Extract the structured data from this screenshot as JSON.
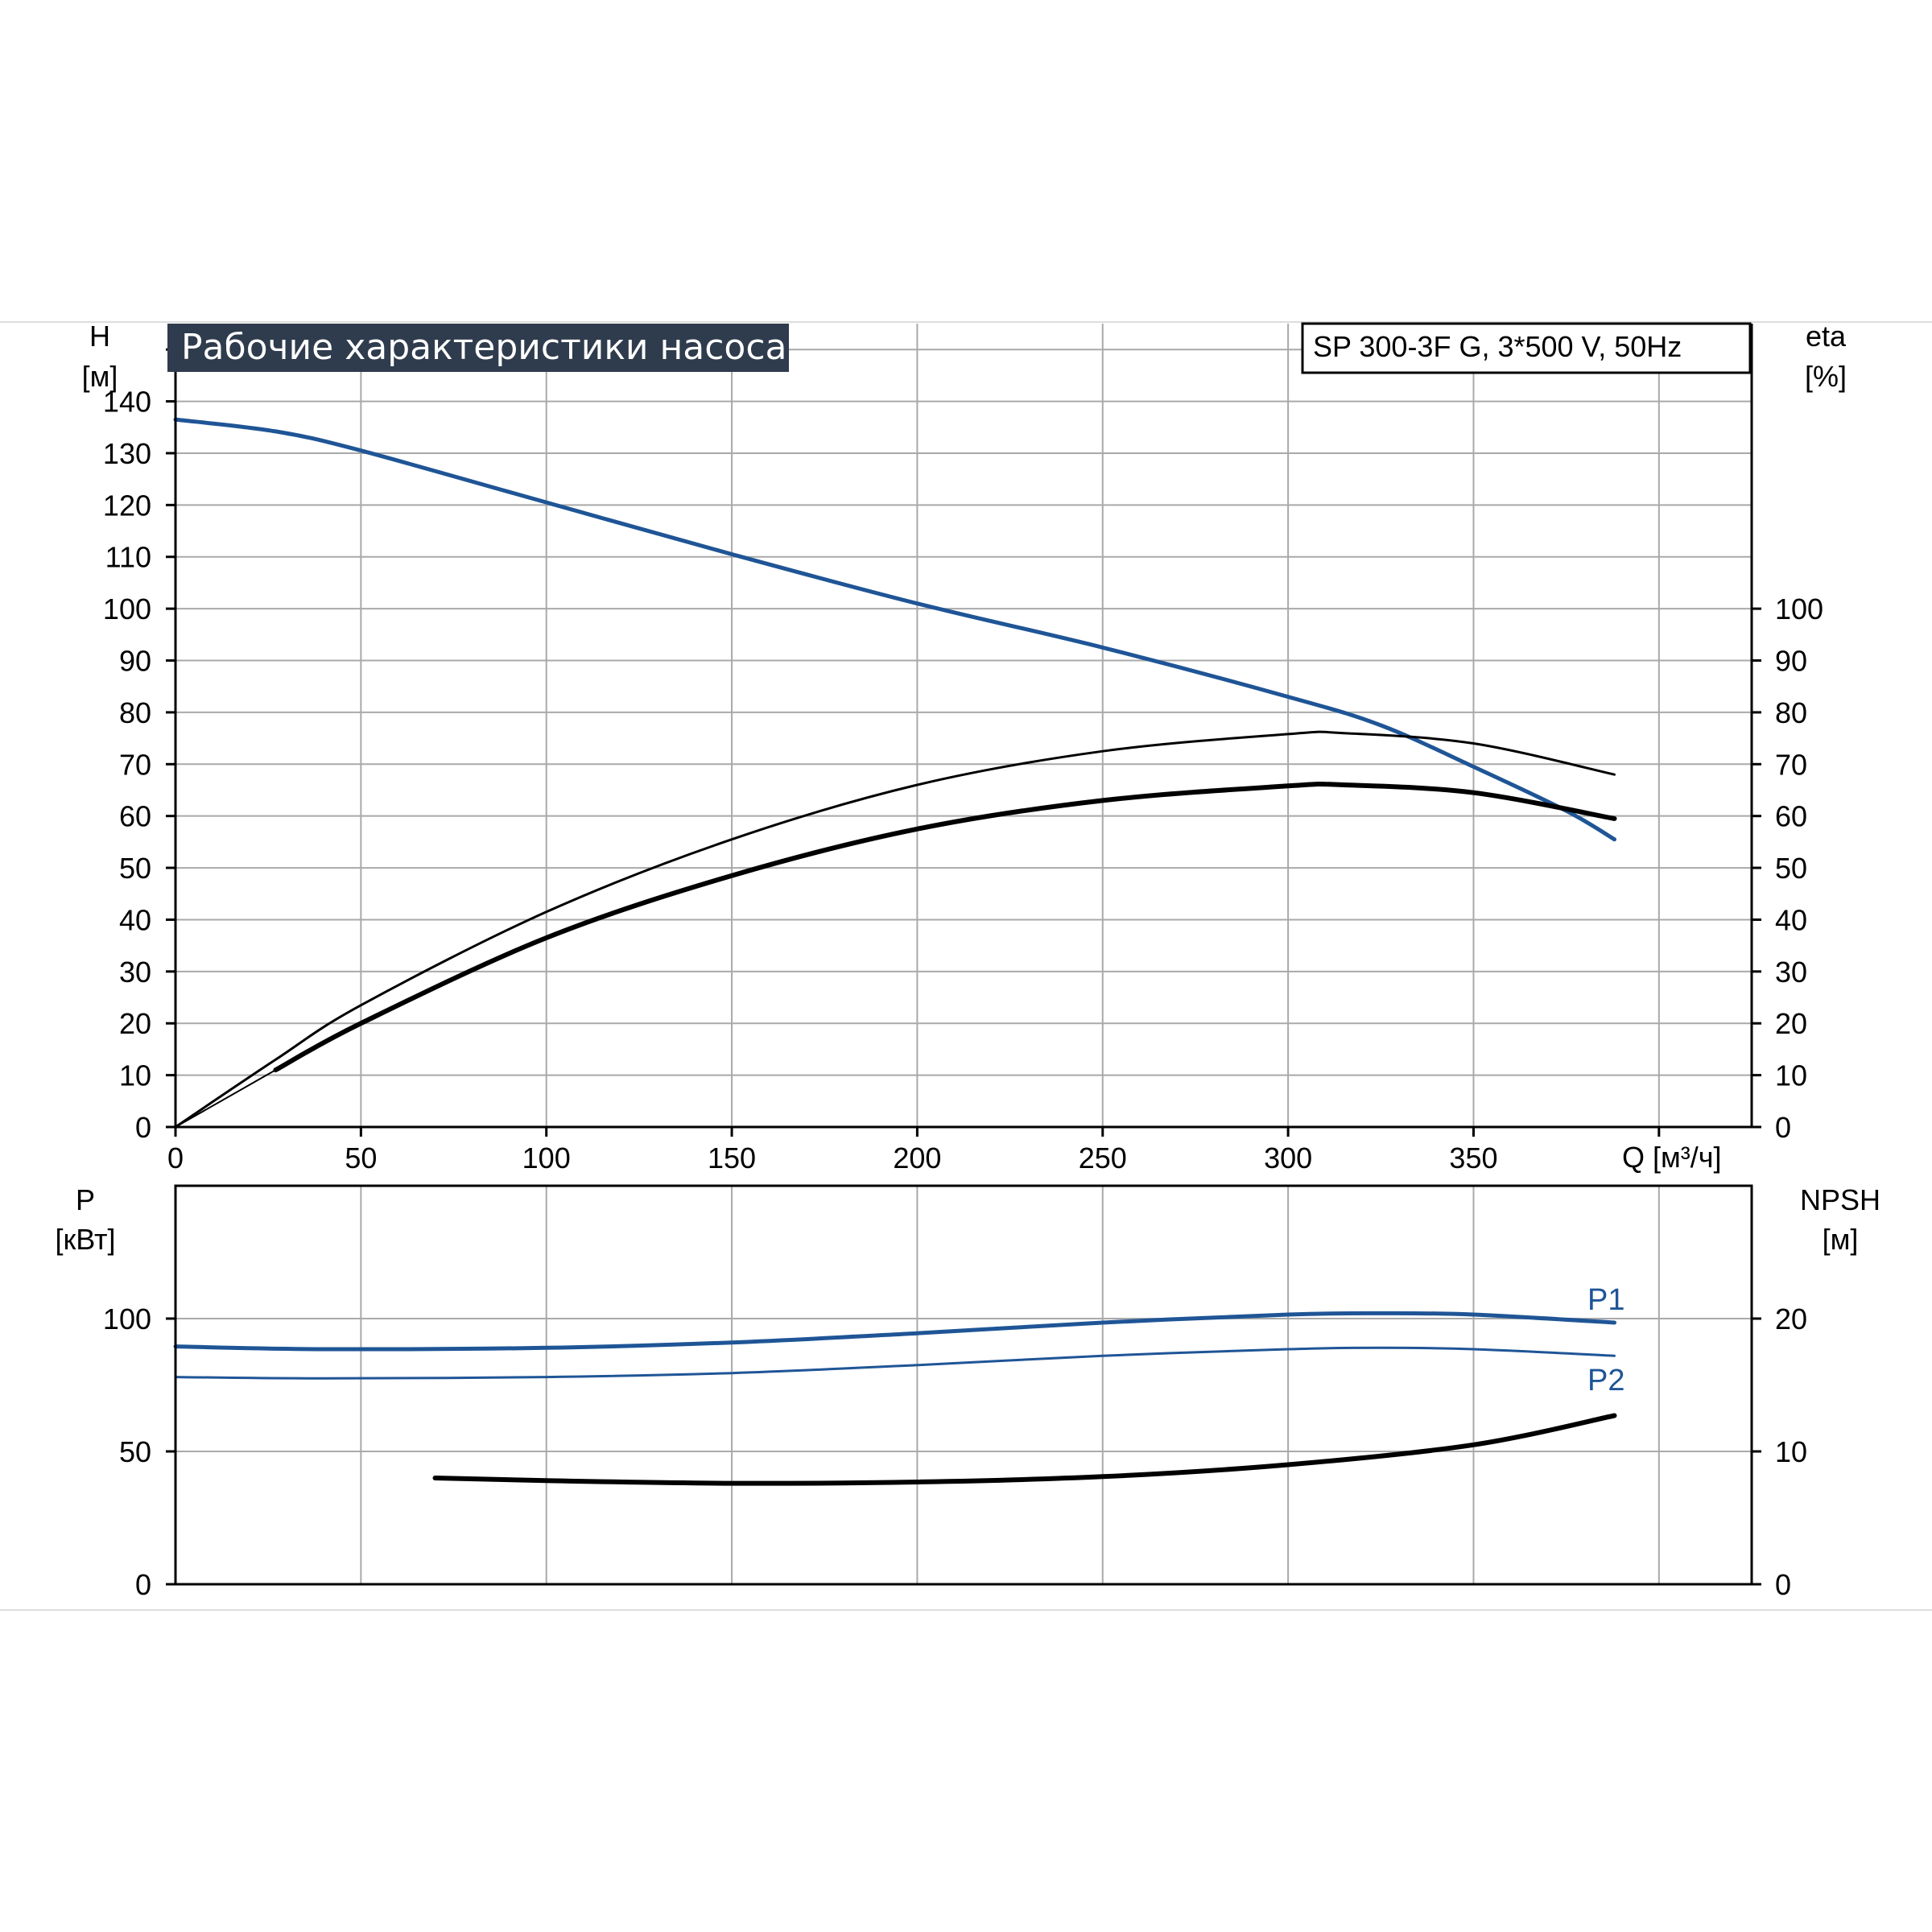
{
  "title": "Рабочие характеристики насоса",
  "model": "SP 300-3F G, 3*500 V, 50Hz",
  "colors": {
    "title_bg": "#2f3c4d",
    "blue": "#1f5596",
    "black": "#000000",
    "grid": "#a9a9a9",
    "page_rule": "#dddddd"
  },
  "chart_data": [
    {
      "type": "line",
      "name": "upper",
      "x_label": "Q [м³/ч]",
      "x_ticks": [
        "0",
        "50",
        "100",
        "150",
        "200",
        "250",
        "300",
        "350"
      ],
      "xlim": [
        0,
        425
      ],
      "left_axis": {
        "label": "H",
        "unit": "[м]",
        "ylim": [
          0,
          155
        ],
        "ticks": [
          "0",
          "10",
          "20",
          "30",
          "40",
          "50",
          "60",
          "70",
          "80",
          "90",
          "100",
          "110",
          "120",
          "130",
          "140"
        ]
      },
      "right_axis": {
        "label": "eta",
        "unit": "[%]",
        "ylim": [
          0,
          155
        ],
        "ticks": [
          "0",
          "10",
          "20",
          "30",
          "40",
          "50",
          "60",
          "70",
          "80",
          "90",
          "100"
        ]
      },
      "grid": true,
      "series": [
        {
          "id": "head",
          "color": "#1f5596",
          "width": 5,
          "x": [
            0,
            27,
            50,
            100,
            150,
            200,
            250,
            300,
            325,
            350,
            375,
            388
          ],
          "y": [
            136.5,
            134.2,
            130.5,
            120.5,
            110.5,
            101,
            92.5,
            83,
            77.5,
            69.5,
            61,
            55.5
          ]
        },
        {
          "id": "eta-pump",
          "color": "#000000",
          "width": 3,
          "x": [
            0,
            27,
            50,
            100,
            150,
            200,
            250,
            300,
            315,
            350,
            388
          ],
          "y": [
            0,
            13,
            23.5,
            41.5,
            55.5,
            66,
            72.5,
            75.8,
            76,
            74,
            68
          ]
        },
        {
          "id": "eta-total",
          "color": "#000000",
          "width": 6,
          "x": [
            27,
            50,
            100,
            150,
            200,
            250,
            300,
            315,
            350,
            388
          ],
          "y": [
            11,
            20,
            36.5,
            48.5,
            57.5,
            63,
            65.8,
            66,
            64.5,
            59.5
          ]
        },
        {
          "id": "eta-lead-in",
          "color": "#000000",
          "width": 2,
          "x": [
            0,
            27
          ],
          "y": [
            0,
            11
          ]
        }
      ]
    },
    {
      "type": "line",
      "name": "lower",
      "xlim": [
        0,
        425
      ],
      "left_axis": {
        "label": "P",
        "unit": "[кВт]",
        "ylim": [
          0,
          150
        ],
        "ticks": [
          "0",
          "50",
          "100"
        ]
      },
      "right_axis": {
        "label": "NPSH",
        "unit": "[м]",
        "ylim": [
          0,
          30
        ],
        "ticks": [
          "0",
          "10",
          "20"
        ]
      },
      "grid": true,
      "series": [
        {
          "id": "P1",
          "label": "P1",
          "color": "#1f5596",
          "width": 5,
          "x": [
            0,
            40,
            100,
            150,
            200,
            250,
            300,
            325,
            350,
            388
          ],
          "y": [
            89.5,
            88.5,
            89,
            91,
            94.5,
            98.5,
            101.5,
            102,
            101.5,
            98.5
          ]
        },
        {
          "id": "P2",
          "label": "P2",
          "color": "#1f5596",
          "width": 3,
          "x": [
            0,
            40,
            100,
            150,
            200,
            250,
            300,
            325,
            350,
            388
          ],
          "y": [
            78,
            77.5,
            78,
            79.5,
            82.5,
            86,
            88.5,
            89,
            88.5,
            86
          ]
        },
        {
          "id": "NPSH",
          "color": "#000000",
          "width": 6,
          "axis": "right",
          "x": [
            70,
            100,
            150,
            200,
            250,
            300,
            350,
            388
          ],
          "y": [
            8,
            7.8,
            7.6,
            7.7,
            8.1,
            9,
            10.5,
            12.7
          ]
        }
      ]
    }
  ]
}
